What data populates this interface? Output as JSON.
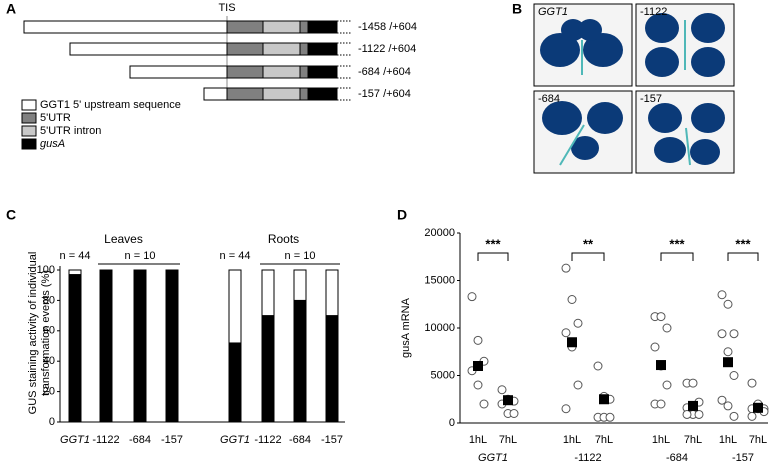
{
  "panel_labels": [
    "A",
    "B",
    "C",
    "D"
  ],
  "diagram": {
    "tis_label": "TIS",
    "constructs": [
      "-1458 /+604",
      "-1122 /+604",
      "-684 /+604",
      "-157 /+604"
    ],
    "legend": [
      "GGT1 5' upstream sequence",
      "5'UTR",
      "5'UTR intron",
      "gusA"
    ]
  },
  "images": {
    "labels": [
      "GGT1",
      "-1122",
      "-684",
      "-157"
    ]
  },
  "chart_data": [
    {
      "type": "stacked_bar",
      "ylabel": "GUS staining activity of individual transformation events (%)",
      "categories": [
        "GGT1",
        "-1122",
        "-684",
        "-157",
        "GGT1",
        "-1122",
        "-684",
        "-157"
      ],
      "groups": [
        {
          "label": "Leaves",
          "n_labels": [
            "n = 44",
            "n = 10"
          ]
        },
        {
          "label": "Roots",
          "n_labels": [
            "n = 44",
            "n = 10"
          ]
        }
      ],
      "series": [
        {
          "color": "#000000",
          "values": [
            97,
            100,
            100,
            100,
            52,
            70,
            80,
            70
          ]
        },
        {
          "color": "#ffffff",
          "values": [
            3,
            0,
            0,
            0,
            48,
            30,
            20,
            30
          ]
        }
      ],
      "ylim": [
        0,
        100
      ],
      "yticks": [
        0,
        20,
        40,
        60,
        80,
        100
      ]
    },
    {
      "type": "dot_plot",
      "ylabel": "gusA mRNA",
      "ylim": [
        0,
        20000
      ],
      "yticks": [
        0,
        5000,
        10000,
        15000,
        20000
      ],
      "groups": [
        {
          "label": "GGT1",
          "significance": "***",
          "conditions": [
            {
              "name": "1hL",
              "values": [
                13300,
                8700,
                6500,
                5500,
                4000,
                2000
              ],
              "mean": 6000
            },
            {
              "name": "7hL",
              "values": [
                3500,
                2500,
                2300,
                2000,
                1000,
                1000
              ],
              "mean": 2400
            }
          ]
        },
        {
          "label": "-1122",
          "significance": "**",
          "conditions": [
            {
              "name": "1hL",
              "values": [
                16300,
                13000,
                10500,
                9500,
                8000,
                4000,
                1500
              ],
              "mean": 8500
            },
            {
              "name": "7hL",
              "values": [
                6000,
                2800,
                2500,
                600,
                600,
                600
              ],
              "mean": 2500
            }
          ]
        },
        {
          "label": "-684",
          "significance": "***",
          "conditions": [
            {
              "name": "1hL",
              "values": [
                11200,
                11200,
                10000,
                8000,
                6000,
                4000,
                2000,
                2000
              ],
              "mean": 6100
            },
            {
              "name": "7hL",
              "values": [
                4200,
                4200,
                2200,
                1600,
                900,
                900,
                900
              ],
              "mean": 1800
            }
          ]
        },
        {
          "label": "-157",
          "significance": "***",
          "conditions": [
            {
              "name": "1hL",
              "values": [
                13500,
                12500,
                9400,
                9400,
                7500,
                5000,
                2400,
                1800,
                700
              ],
              "mean": 6400
            },
            {
              "name": "7hL",
              "values": [
                4200,
                2000,
                1500,
                1500,
                1500,
                1200,
                700
              ],
              "mean": 1600
            }
          ]
        }
      ]
    }
  ]
}
